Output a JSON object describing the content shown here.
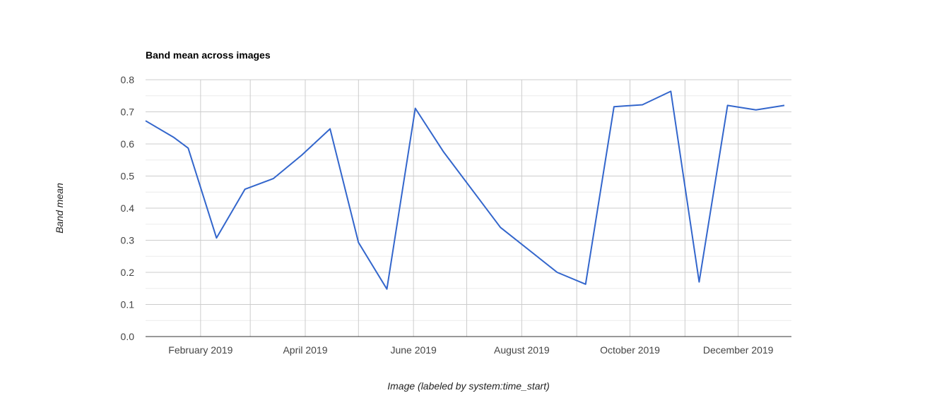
{
  "chart_data": {
    "type": "line",
    "title": "Band mean across images",
    "xlabel": "Image (labeled by system:time_start)",
    "ylabel": "Band mean",
    "x_axis_type": "date",
    "xlim": [
      "2019-01-01",
      "2019-12-31"
    ],
    "ylim": [
      0,
      0.8
    ],
    "y_ticks": [
      "0.0",
      "0.1",
      "0.2",
      "0.3",
      "0.4",
      "0.5",
      "0.6",
      "0.7",
      "0.8"
    ],
    "x_ticks": [
      {
        "date": "2019-02-01",
        "label": "February 2019"
      },
      {
        "date": "2019-04-01",
        "label": "April 2019"
      },
      {
        "date": "2019-06-01",
        "label": "June 2019"
      },
      {
        "date": "2019-08-01",
        "label": "August 2019"
      },
      {
        "date": "2019-10-01",
        "label": "October 2019"
      },
      {
        "date": "2019-12-01",
        "label": "December 2019"
      }
    ],
    "x_minor_gridlines": [
      "2019-03-01",
      "2019-05-01",
      "2019-07-01",
      "2019-09-01",
      "2019-11-01"
    ],
    "grid": true,
    "legend": "none",
    "series": [
      {
        "color": "#3366cc",
        "points": [
          {
            "x": "2019-01-01",
            "y": 0.672
          },
          {
            "x": "2019-01-17",
            "y": 0.62
          },
          {
            "x": "2019-01-25",
            "y": 0.587
          },
          {
            "x": "2019-02-10",
            "y": 0.307
          },
          {
            "x": "2019-02-26",
            "y": 0.459
          },
          {
            "x": "2019-03-14",
            "y": 0.492
          },
          {
            "x": "2019-03-30",
            "y": 0.565
          },
          {
            "x": "2019-04-15",
            "y": 0.647
          },
          {
            "x": "2019-05-01",
            "y": 0.293
          },
          {
            "x": "2019-05-17",
            "y": 0.148
          },
          {
            "x": "2019-06-02",
            "y": 0.711
          },
          {
            "x": "2019-06-18",
            "y": 0.575
          },
          {
            "x": "2019-07-20",
            "y": 0.34
          },
          {
            "x": "2019-08-21",
            "y": 0.2
          },
          {
            "x": "2019-09-06",
            "y": 0.163
          },
          {
            "x": "2019-09-22",
            "y": 0.716
          },
          {
            "x": "2019-10-08",
            "y": 0.722
          },
          {
            "x": "2019-10-24",
            "y": 0.764
          },
          {
            "x": "2019-11-09",
            "y": 0.17
          },
          {
            "x": "2019-11-25",
            "y": 0.72
          },
          {
            "x": "2019-12-11",
            "y": 0.706
          },
          {
            "x": "2019-12-27",
            "y": 0.72
          }
        ]
      }
    ]
  }
}
